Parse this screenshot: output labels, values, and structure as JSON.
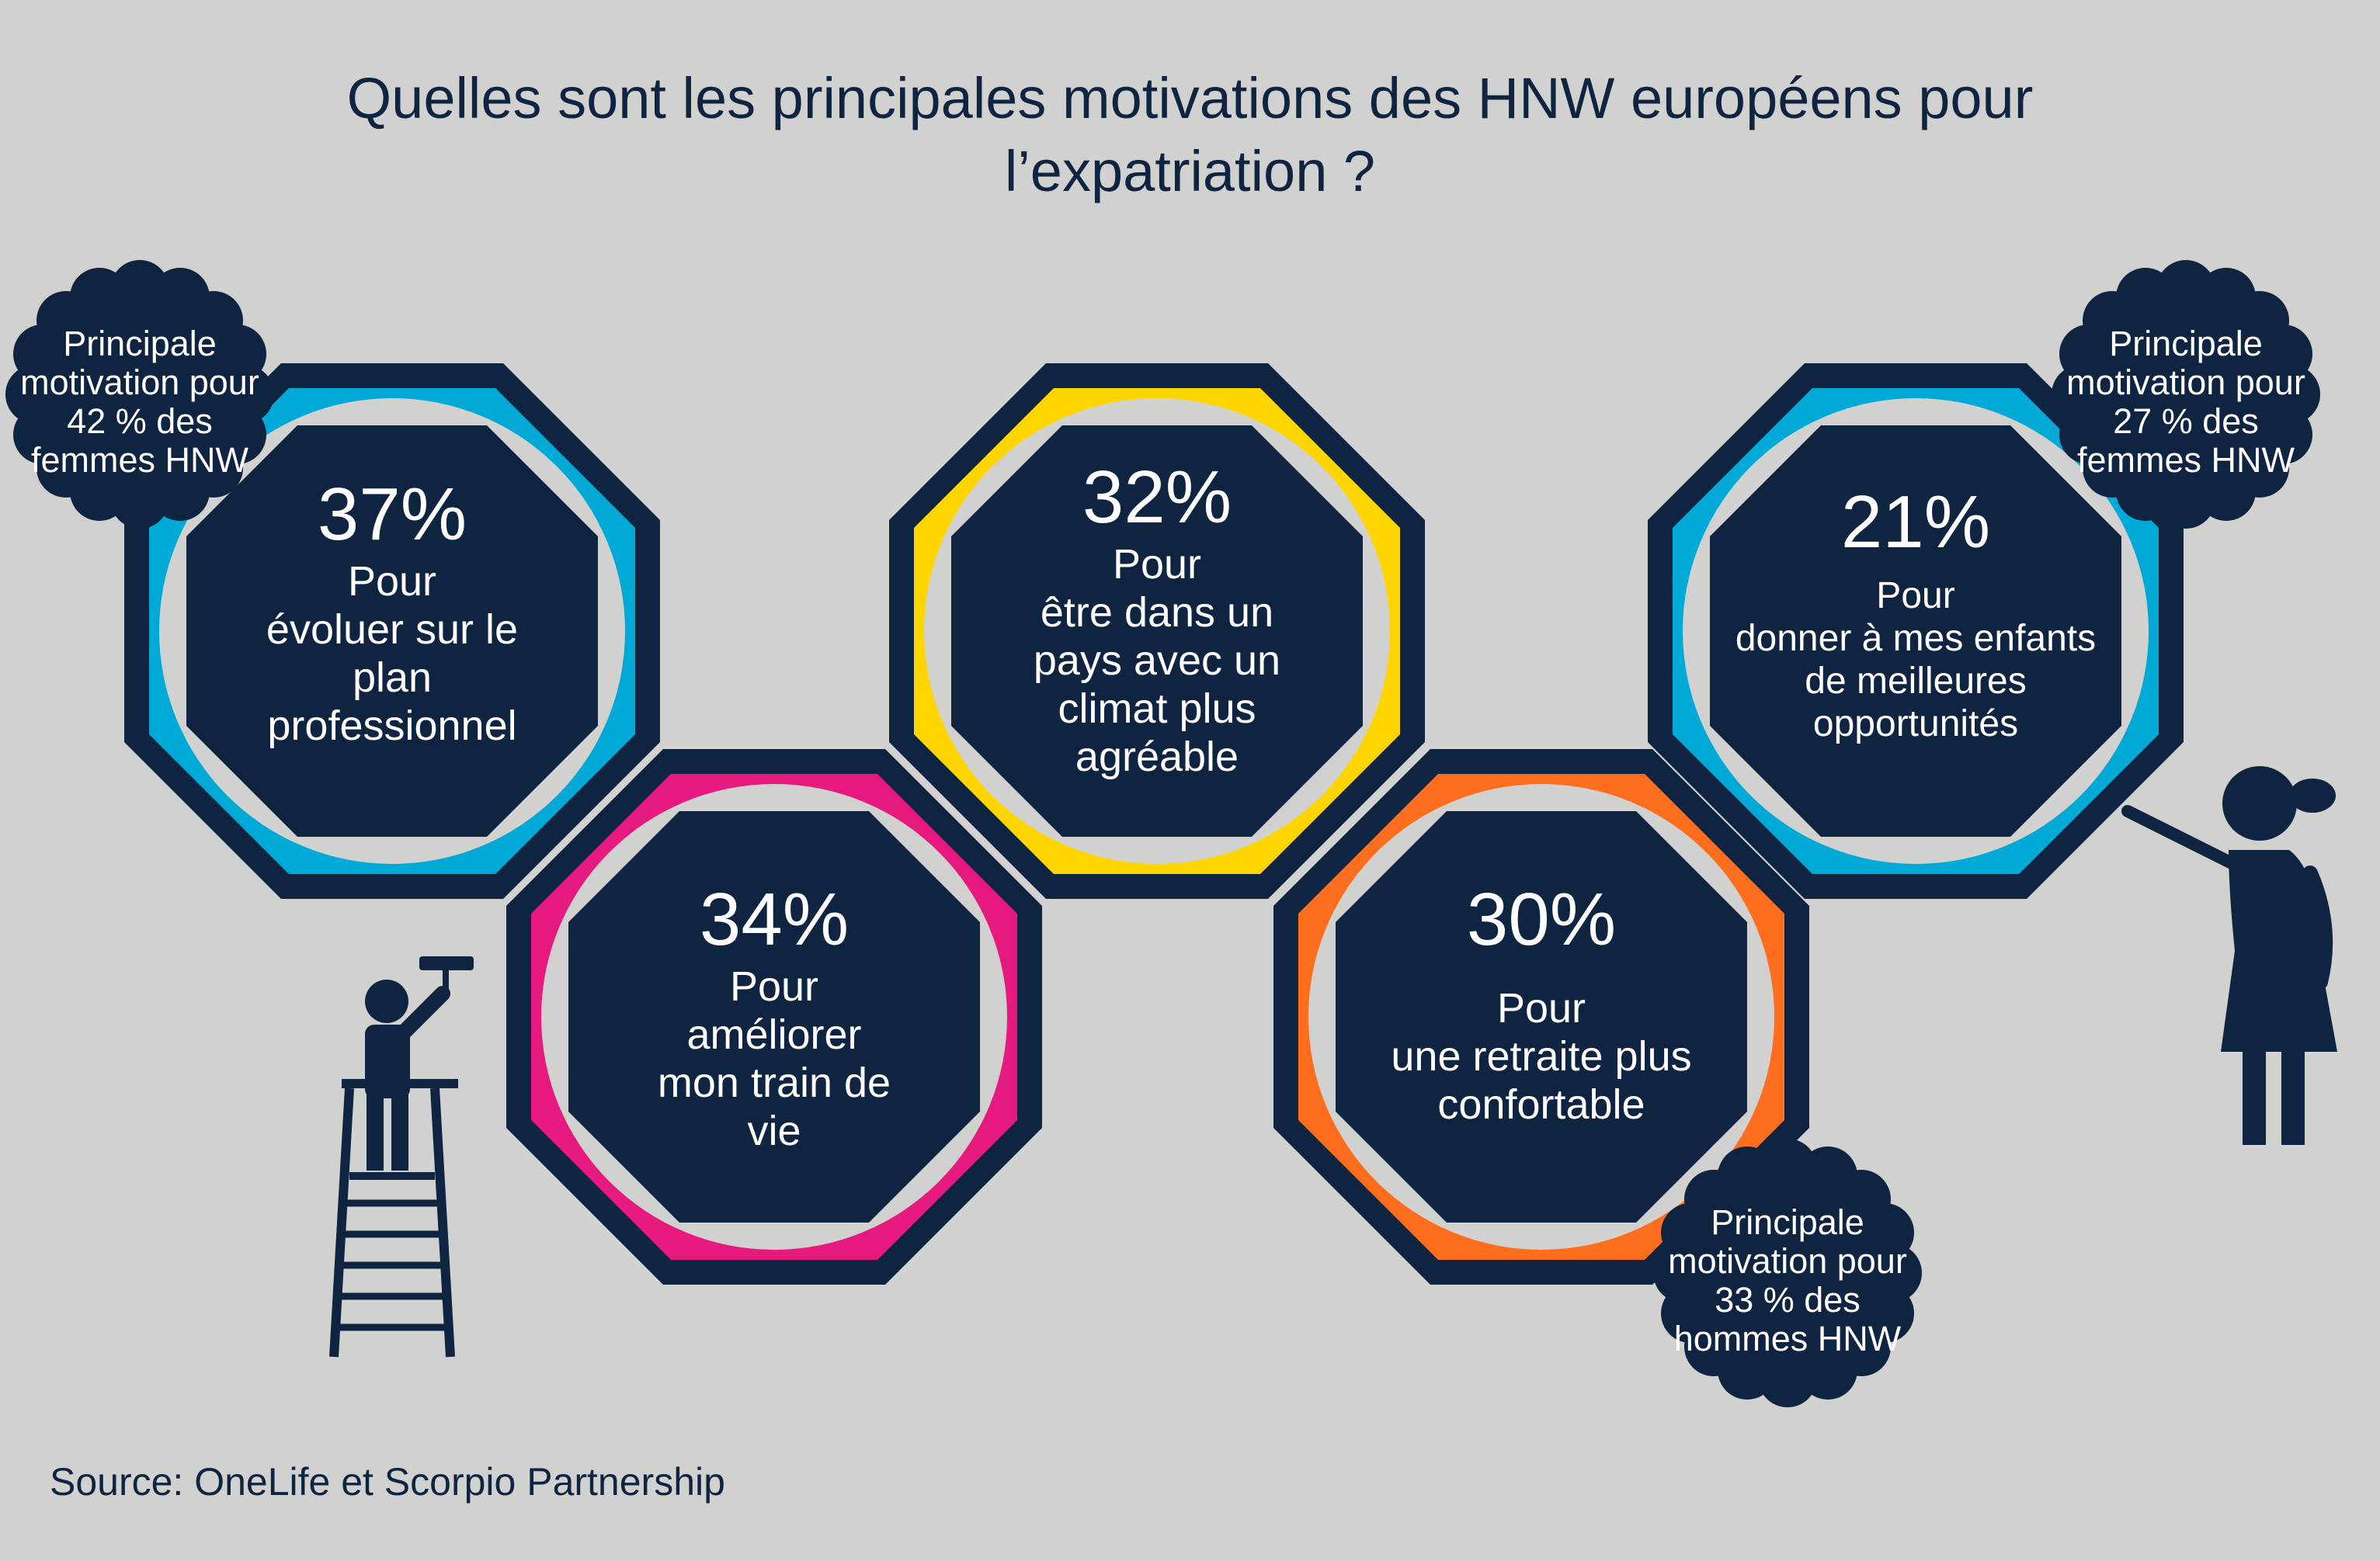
{
  "title": {
    "line1": "Quelles sont les principales motivations des HNW européens pour",
    "line2": "l’expatriation ?"
  },
  "motivations": [
    {
      "percent": "37%",
      "label": "Pour\névoluer sur le\nplan\nprofessionnel",
      "color": "#00a9d6"
    },
    {
      "percent": "34%",
      "label": "Pour\naméliorer\nmon train de\nvie",
      "color": "#e5197e"
    },
    {
      "percent": "32%",
      "label": "Pour\nêtre dans un\npays avec un\nclimat plus\nagréable",
      "color": "#ffd500"
    },
    {
      "percent": "30%",
      "label": "Pour\nune retraite plus\nconfortable",
      "color": "#ff6d1f"
    },
    {
      "percent": "21%",
      "label": "Pour\ndonner à mes enfants\nde meilleures\nopportunités",
      "color": "#00a9d6"
    }
  ],
  "badges": [
    {
      "text": "Principale\nmotivation pour\n42 % des\nfemmes HNW"
    },
    {
      "text": "Principale\nmotivation pour\n27 % des\nfemmes HNW"
    },
    {
      "text": "Principale\nmotivation pour\n33 % des\nhommes HNW"
    }
  ],
  "colors": {
    "navy": "#0f2440",
    "background": "#d1d1d0",
    "ring_inner": "#d1d1d0"
  },
  "icons": {
    "painter": "painter-on-ladder-icon",
    "girl": "girl-pointing-icon"
  },
  "source": "Source: OneLife et Scorpio Partnership"
}
